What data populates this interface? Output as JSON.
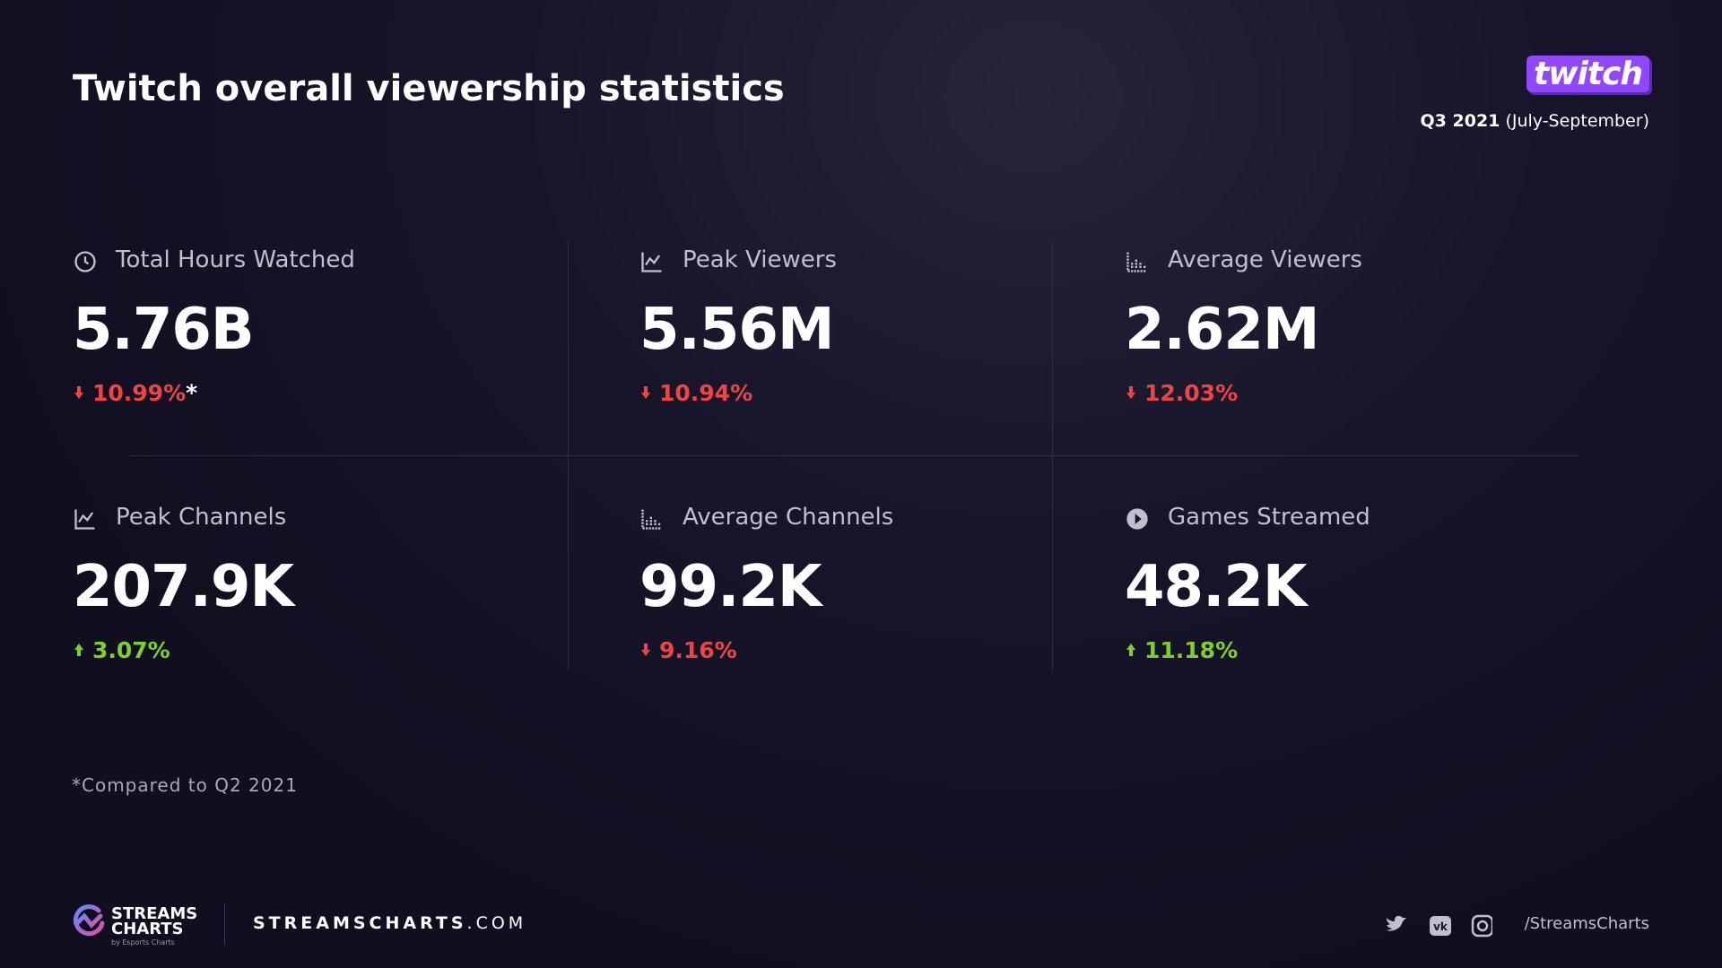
{
  "header": {
    "title": "Twitch overall viewership statistics",
    "logo": "twitch",
    "period_bold": "Q3 2021",
    "period_rest": "(July-September)"
  },
  "stats": [
    {
      "label": "Total Hours Watched",
      "value": "5.76B",
      "change": "10.99%",
      "marker": "*",
      "trend": "down"
    },
    {
      "label": "Peak Viewers",
      "value": "5.56M",
      "change": "10.94%",
      "trend": "down"
    },
    {
      "label": "Average Viewers",
      "value": "2.62M",
      "change": "12.03%",
      "trend": "down"
    },
    {
      "label": "Peak Channels",
      "value": "207.9K",
      "change": "3.07%",
      "trend": "up"
    },
    {
      "label": "Average Channels",
      "value": "99.2K",
      "change": "9.16%",
      "trend": "down"
    },
    {
      "label": "Games Streamed",
      "value": "48.2K",
      "change": "11.18%",
      "trend": "up"
    }
  ],
  "footnote": "*Compared to Q2 2021",
  "footer": {
    "brand_top": "STREAMS",
    "brand_bottom": "CHARTS",
    "brand_sub": "by Esports Charts",
    "site_main": "STREAMSCHARTS",
    "site_tld": ".COM",
    "handle": "/StreamsCharts"
  }
}
